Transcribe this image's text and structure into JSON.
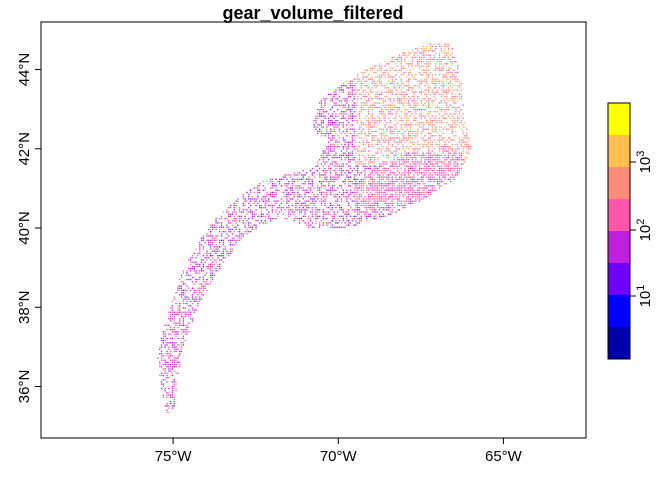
{
  "title": "gear_volume_filtered",
  "chart_data": {
    "type": "heatmap",
    "title": "gear_volume_filtered",
    "xlabel": "",
    "ylabel": "",
    "xlim": [
      -79,
      -62.5
    ],
    "ylim": [
      34.7,
      45.2
    ],
    "x_ticks": [
      {
        "value": -75,
        "label": "75°W"
      },
      {
        "value": -70,
        "label": "70°W"
      },
      {
        "value": -65,
        "label": "65°W"
      }
    ],
    "y_ticks": [
      {
        "value": 36,
        "label": "36°N"
      },
      {
        "value": 38,
        "label": "38°N"
      },
      {
        "value": 40,
        "label": "40°N"
      },
      {
        "value": 42,
        "label": "42°N"
      },
      {
        "value": 44,
        "label": "44°N"
      }
    ],
    "scale": "log10",
    "colorbar": {
      "placement": "right",
      "colors": [
        "#0000AA",
        "#0000FF",
        "#6F00FF",
        "#BF1FDF",
        "#FF55AA",
        "#FF8C7A",
        "#FFBF50",
        "#FFFF00"
      ],
      "tick_labels": [
        {
          "base": "10",
          "exp": "1"
        },
        {
          "base": "10",
          "exp": "2"
        },
        {
          "base": "10",
          "exp": "3"
        }
      ]
    },
    "region_outline": [
      [
        -75.2,
        35.3
      ],
      [
        -75.4,
        36.0
      ],
      [
        -75.5,
        36.8
      ],
      [
        -75.3,
        37.5
      ],
      [
        -75.0,
        38.3
      ],
      [
        -74.7,
        39.0
      ],
      [
        -74.3,
        39.6
      ],
      [
        -73.8,
        40.2
      ],
      [
        -73.0,
        40.8
      ],
      [
        -72.3,
        41.2
      ],
      [
        -71.5,
        41.4
      ],
      [
        -70.7,
        41.6
      ],
      [
        -70.4,
        42.1
      ],
      [
        -70.8,
        42.6
      ],
      [
        -70.6,
        43.2
      ],
      [
        -70.0,
        43.6
      ],
      [
        -69.2,
        44.0
      ],
      [
        -68.2,
        44.4
      ],
      [
        -67.2,
        44.7
      ],
      [
        -66.6,
        44.7
      ],
      [
        -66.3,
        43.8
      ],
      [
        -66.2,
        42.9
      ],
      [
        -66.0,
        42.0
      ],
      [
        -66.4,
        41.3
      ],
      [
        -67.5,
        40.7
      ],
      [
        -68.6,
        40.3
      ],
      [
        -69.8,
        40.0
      ],
      [
        -70.8,
        40.0
      ],
      [
        -71.8,
        40.3
      ],
      [
        -72.9,
        39.8
      ],
      [
        -73.6,
        39.0
      ],
      [
        -74.3,
        38.0
      ],
      [
        -74.7,
        37.0
      ],
      [
        -74.9,
        36.1
      ],
      [
        -75.0,
        35.4
      ]
    ],
    "high_density_region": [
      [
        -69.6,
        41.0
      ],
      [
        -69.0,
        41.5
      ],
      [
        -68.0,
        41.9
      ],
      [
        -67.0,
        42.0
      ],
      [
        -66.2,
        41.9
      ],
      [
        -66.3,
        41.2
      ],
      [
        -67.2,
        40.8
      ],
      [
        -68.4,
        40.5
      ],
      [
        -69.5,
        40.5
      ]
    ]
  }
}
